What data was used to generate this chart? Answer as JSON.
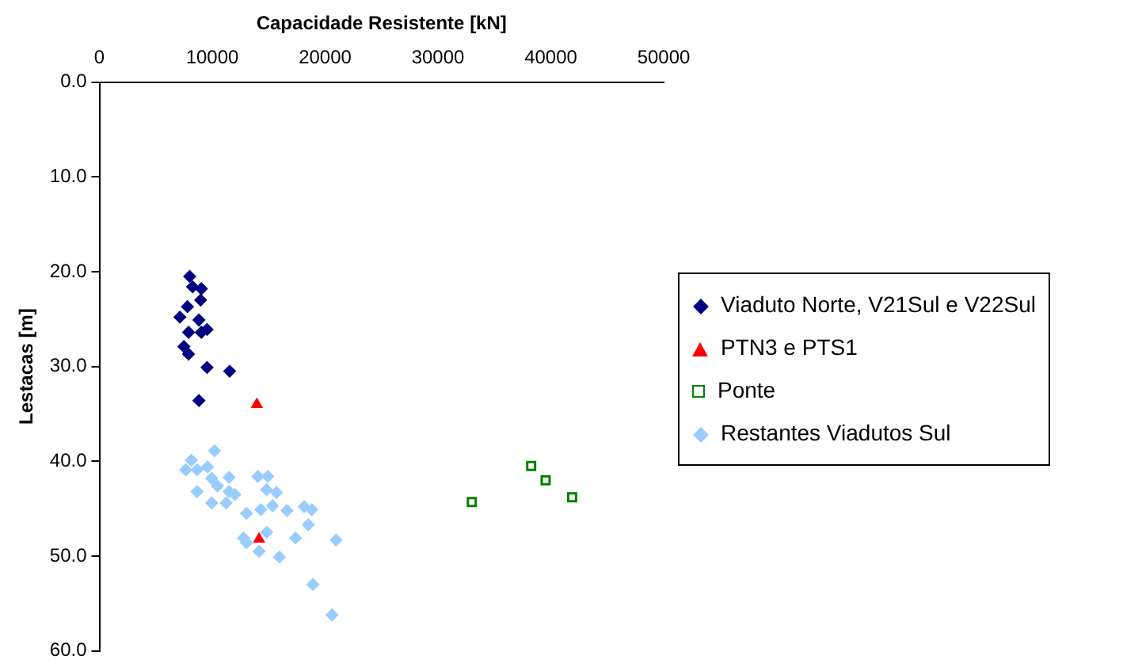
{
  "chart_data": {
    "type": "scatter",
    "xlabel": "Capacidade Resistente [kN]",
    "ylabel": "Lestacas [m]",
    "xlim": [
      0,
      50000
    ],
    "xticks": [
      0,
      10000,
      20000,
      30000,
      40000,
      50000
    ],
    "ylim": [
      60,
      0
    ],
    "yticks": [
      {
        "value": 0,
        "label": "0.0"
      },
      {
        "value": 10,
        "label": "10.0"
      },
      {
        "value": 20,
        "label": "20.0"
      },
      {
        "value": 30,
        "label": "30.0"
      },
      {
        "value": 40,
        "label": "40.0"
      },
      {
        "value": 50,
        "label": "50.0"
      },
      {
        "value": 60,
        "label": "60.0"
      }
    ],
    "grid": false,
    "legend": "right",
    "series": [
      {
        "name": "Viaduto Norte, V21Sul e V22Sul",
        "color": "#000080",
        "marker": "diamond",
        "x": [
          8000,
          8260,
          9030,
          8970,
          7800,
          7130,
          8820,
          9540,
          9030,
          7900,
          7490,
          7900,
          9540,
          11540,
          8820
        ],
        "values": [
          20.5,
          21.6,
          21.8,
          23.0,
          23.7,
          24.8,
          25.1,
          26.1,
          26.4,
          26.4,
          27.9,
          28.7,
          30.1,
          30.5,
          33.6
        ]
      },
      {
        "name": "PTN3 e PTS1",
        "color": "#ff0000",
        "marker": "triangle",
        "x": [
          13950,
          14150
        ],
        "values": [
          34.0,
          48.2
        ]
      },
      {
        "name": "Ponte",
        "color": "#008000",
        "marker": "square",
        "x": [
          33000,
          38260,
          39540,
          41890
        ],
        "values": [
          44.3,
          40.5,
          42.0,
          43.8
        ]
      },
      {
        "name": "Restantes Viadutos Sul",
        "color": "#99ccff",
        "marker": "diamond",
        "x": [
          10200,
          8150,
          7650,
          8660,
          9580,
          9950,
          11490,
          10460,
          8660,
          11490,
          9950,
          11230,
          12000,
          14050,
          14920,
          14820,
          15690,
          15340,
          14310,
          13030,
          16620,
          18150,
          18820,
          18510,
          20970,
          17380,
          14820,
          12770,
          13030,
          14150,
          15950,
          18920,
          20620
        ],
        "values": [
          38.9,
          39.9,
          40.9,
          40.9,
          40.6,
          41.8,
          41.7,
          42.6,
          43.2,
          43.2,
          44.4,
          44.4,
          43.5,
          41.6,
          41.6,
          43.0,
          43.3,
          44.7,
          45.1,
          45.5,
          45.2,
          44.8,
          45.1,
          46.7,
          48.3,
          48.1,
          47.5,
          48.1,
          48.6,
          49.5,
          50.1,
          53.0,
          56.2
        ]
      }
    ]
  }
}
